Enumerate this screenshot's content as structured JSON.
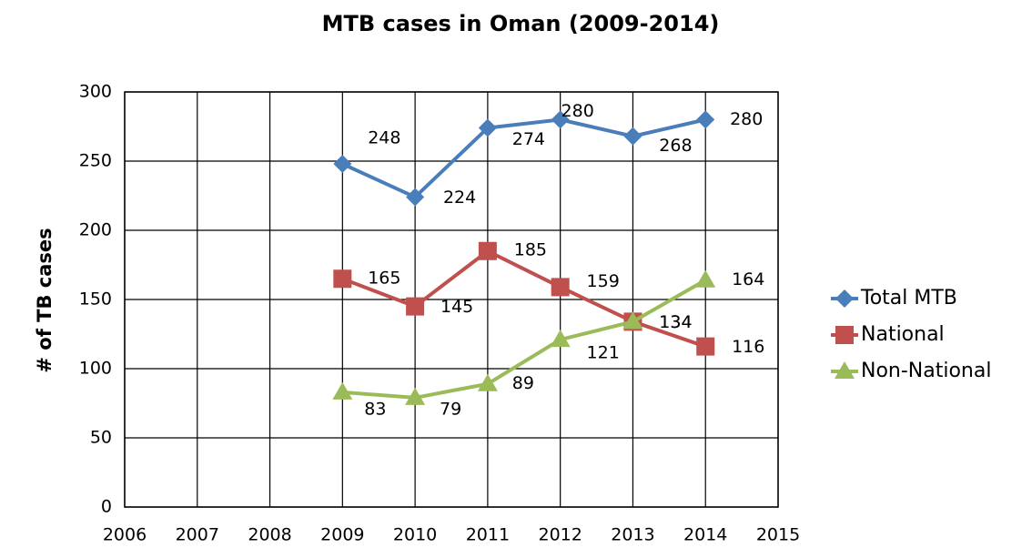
{
  "chart_data": {
    "type": "line",
    "title": "MTB cases in Oman (2009-2014)",
    "ylabel": "# of TB cases",
    "x": [
      2009,
      2010,
      2011,
      2012,
      2013,
      2014
    ],
    "series": [
      {
        "name": "Total MTB",
        "color": "#4a7ebb",
        "marker": "diamond",
        "values": [
          248,
          224,
          274,
          280,
          268,
          280
        ]
      },
      {
        "name": "National",
        "color": "#c0504d",
        "marker": "square",
        "values": [
          165,
          145,
          185,
          159,
          134,
          116
        ]
      },
      {
        "name": "Non-National",
        "color": "#9bbb59",
        "marker": "triangle",
        "values": [
          83,
          79,
          89,
          121,
          134,
          164
        ]
      }
    ],
    "xlim": [
      2006,
      2015
    ],
    "xticks": [
      2006,
      2007,
      2008,
      2009,
      2010,
      2011,
      2012,
      2013,
      2014,
      2015
    ],
    "ylim": [
      0,
      300
    ],
    "yticks": [
      0,
      50,
      100,
      150,
      200,
      250,
      300
    ],
    "grid": true,
    "legend": "right"
  }
}
